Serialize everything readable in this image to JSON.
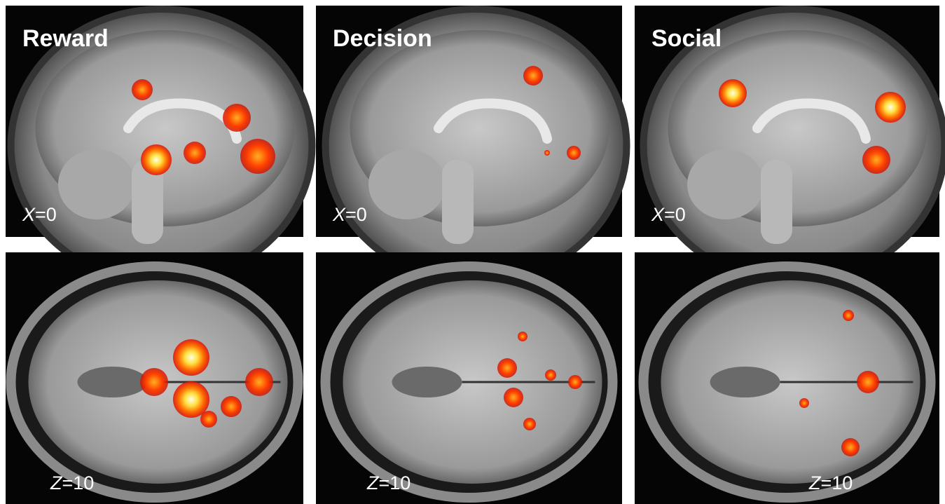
{
  "columns": [
    {
      "title": "Reward"
    },
    {
      "title": "Decision"
    },
    {
      "title": "Social"
    }
  ],
  "rows": [
    {
      "coords": [
        {
          "axis": "X",
          "value": "=0"
        },
        {
          "axis": "X",
          "value": "=0"
        },
        {
          "axis": "X",
          "value": "=0"
        }
      ]
    },
    {
      "coords": [
        {
          "axis": "Z",
          "value": "=10"
        },
        {
          "axis": "Z",
          "value": "=10"
        },
        {
          "axis": "Z",
          "value": "=10"
        }
      ]
    }
  ]
}
